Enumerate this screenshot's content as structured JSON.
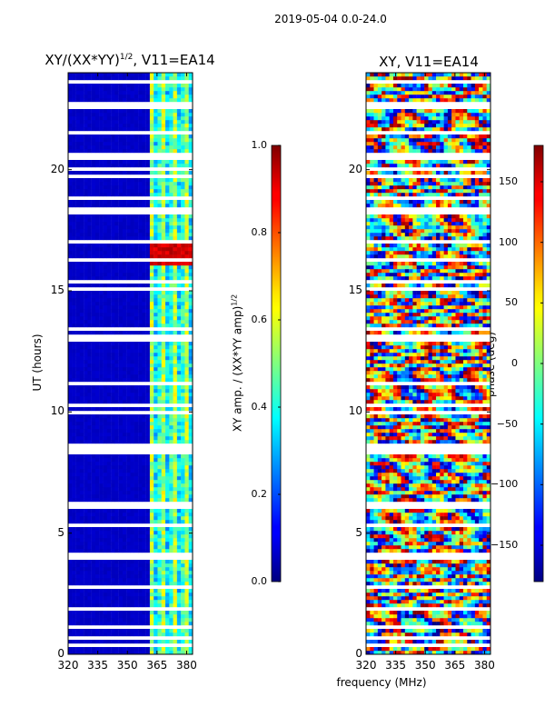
{
  "suptitle": "2019-05-04 0.0-24.0",
  "xlabel": "frequency (MHz)",
  "chart_data": [
    {
      "type": "heatmap",
      "title_main": "XY/(XX*YY)",
      "title_sup": "1/2",
      "title_tail": ", V11=EA14",
      "ylabel": "UT (hours)",
      "xlim": [
        320,
        383
      ],
      "ylim": [
        0,
        24
      ],
      "xticks": [
        320,
        335,
        350,
        365,
        380
      ],
      "yticks": [
        0,
        5,
        10,
        15,
        20
      ],
      "colorbar": {
        "label_main": "XY amp. / (XX*YY amp)",
        "label_sup": "1/2",
        "range": [
          0.0,
          1.0
        ],
        "ticks": [
          "0.0",
          "0.2",
          "0.4",
          "0.6",
          "0.8",
          "1.0"
        ],
        "tick_values": [
          0.0,
          0.2,
          0.4,
          0.6,
          0.8,
          1.0
        ],
        "colormap": "jet"
      },
      "features": "low normalized amplitude (~0.05) below 360 MHz; streaky moderate amplitude (~0.3-0.6) between 360 and 383 MHz; high amplitude (~0.85-0.95) patch near 16.5 h, 360-380 MHz"
    },
    {
      "type": "heatmap",
      "title_main": "XY, V11=EA14",
      "ylabel": "",
      "xlim": [
        320,
        383
      ],
      "ylim": [
        0,
        24
      ],
      "xticks": [
        320,
        335,
        350,
        365,
        380
      ],
      "yticks": [
        0,
        5,
        10,
        15,
        20
      ],
      "colorbar": {
        "label_main": "phase (deg)",
        "range": [
          -180,
          180
        ],
        "ticks": [
          "−150",
          "−100",
          "−50",
          "0",
          "50",
          "100",
          "150"
        ],
        "tick_values": [
          -150,
          -100,
          -50,
          0,
          50,
          100,
          150
        ],
        "colormap": "jet"
      },
      "features": "phase wraps across full -180..180 range with horizontal banding"
    }
  ]
}
